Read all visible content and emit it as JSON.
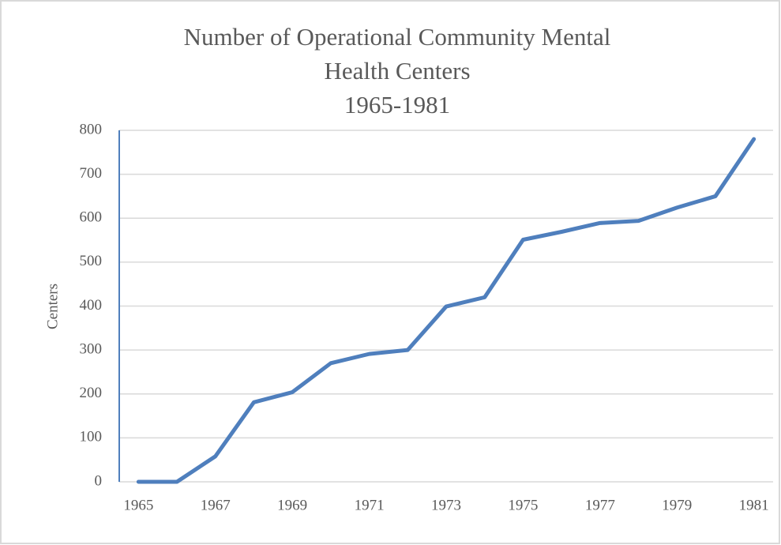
{
  "chart_data": {
    "type": "line",
    "title": [
      "Number of Operational Community Mental",
      "Health Centers",
      "1965-1981"
    ],
    "y_label": "Centers",
    "x": [
      1965,
      1966,
      1967,
      1968,
      1969,
      1970,
      1971,
      1972,
      1973,
      1974,
      1975,
      1976,
      1977,
      1978,
      1979,
      1980,
      1981
    ],
    "series": [
      {
        "name": "Centers",
        "color": "#4f7fbd",
        "values": [
          0,
          0,
          58,
          181,
          204,
          270,
          291,
          300,
          399,
          420,
          551,
          569,
          589,
          594,
          624,
          650,
          780
        ]
      }
    ],
    "xlim": [
      1964.5,
      1981.5
    ],
    "xticks": [
      1965,
      1967,
      1969,
      1971,
      1973,
      1975,
      1977,
      1979,
      1981
    ],
    "ylim": [
      0,
      800
    ],
    "yticks": [
      0,
      100,
      200,
      300,
      400,
      500,
      600,
      700,
      800
    ],
    "grid": true,
    "legend": false
  }
}
